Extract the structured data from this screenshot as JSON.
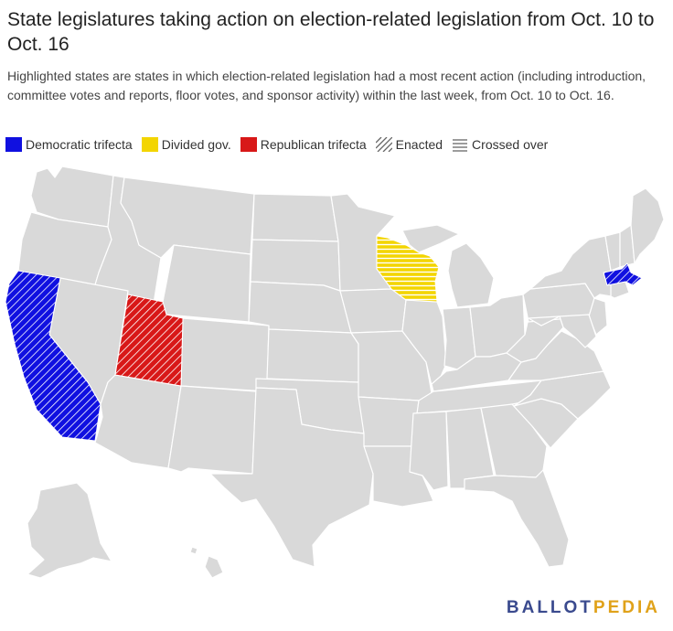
{
  "title": "State legislatures taking action on election-related legislation from Oct. 10 to Oct. 16",
  "subtitle": "Highlighted states are states in which election-related legislation had a most recent action (including introduction, committee votes and reports, floor votes, and sponsor activity) within the last week, from Oct. 10 to Oct. 16.",
  "legend": [
    {
      "label": "Democratic trifecta",
      "color": "#1010e0",
      "swatch": "solid"
    },
    {
      "label": "Divided gov.",
      "color": "#f3d500",
      "swatch": "solid"
    },
    {
      "label": "Republican trifecta",
      "color": "#d81818",
      "swatch": "solid"
    },
    {
      "label": "Enacted",
      "color": "#666666",
      "swatch": "diagonal-hatch"
    },
    {
      "label": "Crossed over",
      "color": "#666666",
      "swatch": "horizontal-lines"
    }
  ],
  "colors": {
    "base_state": "#d9d9d9",
    "state_border": "#ffffff"
  },
  "highlighted_states": [
    {
      "state": "California",
      "category": "Democratic trifecta",
      "status": "Enacted"
    },
    {
      "state": "Massachusetts",
      "category": "Democratic trifecta",
      "status": "Enacted"
    },
    {
      "state": "Utah",
      "category": "Republican trifecta",
      "status": "Enacted"
    },
    {
      "state": "Wisconsin",
      "category": "Divided gov.",
      "status": "Crossed over"
    }
  ],
  "logo": {
    "part1": "BALLOT",
    "part2": "PEDIA"
  }
}
